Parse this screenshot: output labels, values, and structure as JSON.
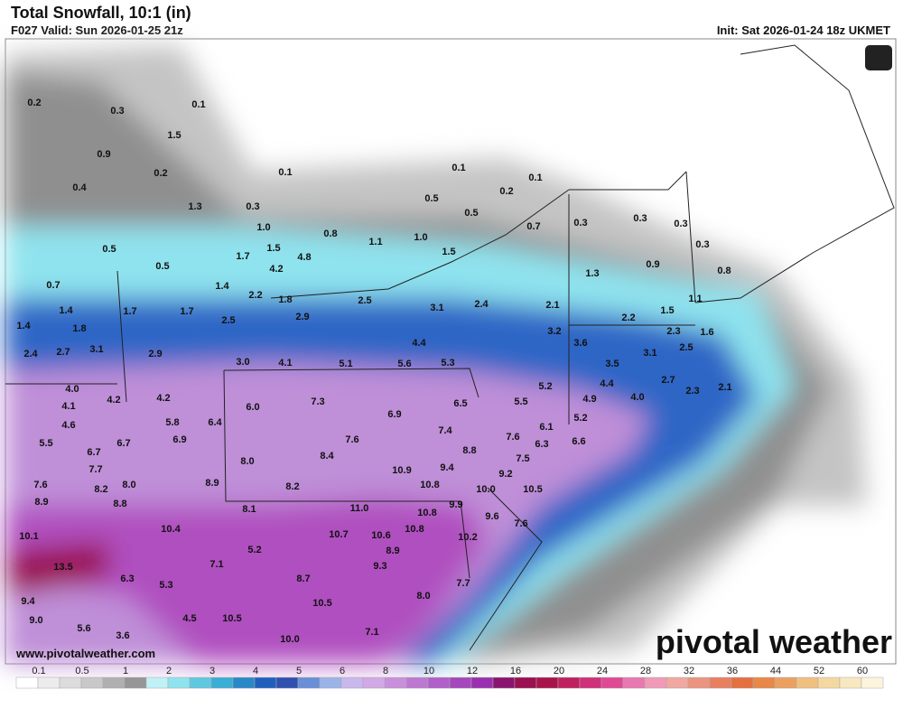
{
  "header": {
    "title": "Total Snowfall, 10:1 (in)",
    "valid": "F027 Valid: Sun 2026-01-25 21z",
    "init": "Init: Sat 2026-01-24 18z UKMET"
  },
  "map": {
    "labels": [
      "0.2",
      "0.3",
      "0.1",
      "1.5",
      "0.9",
      "0.2",
      "0.1",
      "0.1",
      "0.1",
      "0.4",
      "1.3",
      "0.3",
      "0.5",
      "0.2",
      "0.5",
      "0.7",
      "0.3",
      "0.3",
      "0.3",
      "1.0",
      "0.8",
      "1.1",
      "1.0",
      "1.5",
      "0.5",
      "1.5",
      "1.7",
      "4.8",
      "4.2",
      "0.5",
      "0.3",
      "0.9",
      "0.8",
      "1.3",
      "0.7",
      "1.4",
      "2.2",
      "1.8",
      "2.5",
      "1.1",
      "1.4",
      "1.7",
      "1.7",
      "3.1",
      "2.4",
      "2.1",
      "1.5",
      "2.2",
      "2.9",
      "2.5",
      "1.4",
      "1.8",
      "3.2",
      "2.3",
      "1.6",
      "3.6",
      "4.4",
      "3.1",
      "2.4",
      "2.7",
      "2.9",
      "3.1",
      "2.5",
      "3.0",
      "4.1",
      "5.1",
      "5.6",
      "5.3",
      "3.5",
      "2.7",
      "2.3",
      "2.1",
      "4.4",
      "5.2",
      "4.0",
      "4.2",
      "4.2",
      "4.1",
      "4.9",
      "4.0",
      "5.5",
      "6.0",
      "7.3",
      "6.5",
      "6.9",
      "5.2",
      "6.1",
      "5.8",
      "6.4",
      "4.6",
      "7.4",
      "6.9",
      "6.7",
      "7.6",
      "7.6",
      "6.6",
      "6.3",
      "5.5",
      "6.7",
      "8.8",
      "8.4",
      "7.5",
      "8.0",
      "7.7",
      "10.9",
      "9.4",
      "9.2",
      "7.6",
      "8.0",
      "8.2",
      "8.9",
      "8.2",
      "10.8",
      "10.0",
      "10.5",
      "8.9",
      "8.8",
      "8.1",
      "11.0",
      "10.8",
      "9.9",
      "9.6",
      "7.6",
      "10.4",
      "10.7",
      "10.6",
      "10.8",
      "10.2",
      "10.1",
      "5.2",
      "8.9",
      "7.1",
      "9.3",
      "13.5",
      "6.3",
      "8.7",
      "5.3",
      "7.7",
      "9.4",
      "8.0",
      "10.5",
      "9.0",
      "5.6",
      "4.5",
      "10.5",
      "3.6",
      "7.1",
      "10.0"
    ],
    "watermark": "www.pivotalweather.com",
    "logo": "pivotal weather"
  },
  "colorbar": {
    "ticks": [
      "0.1",
      "0.5",
      "1",
      "2",
      "3",
      "4",
      "5",
      "6",
      "8",
      "10",
      "12",
      "16",
      "20",
      "24",
      "28",
      "32",
      "36",
      "44",
      "52",
      "60"
    ]
  }
}
